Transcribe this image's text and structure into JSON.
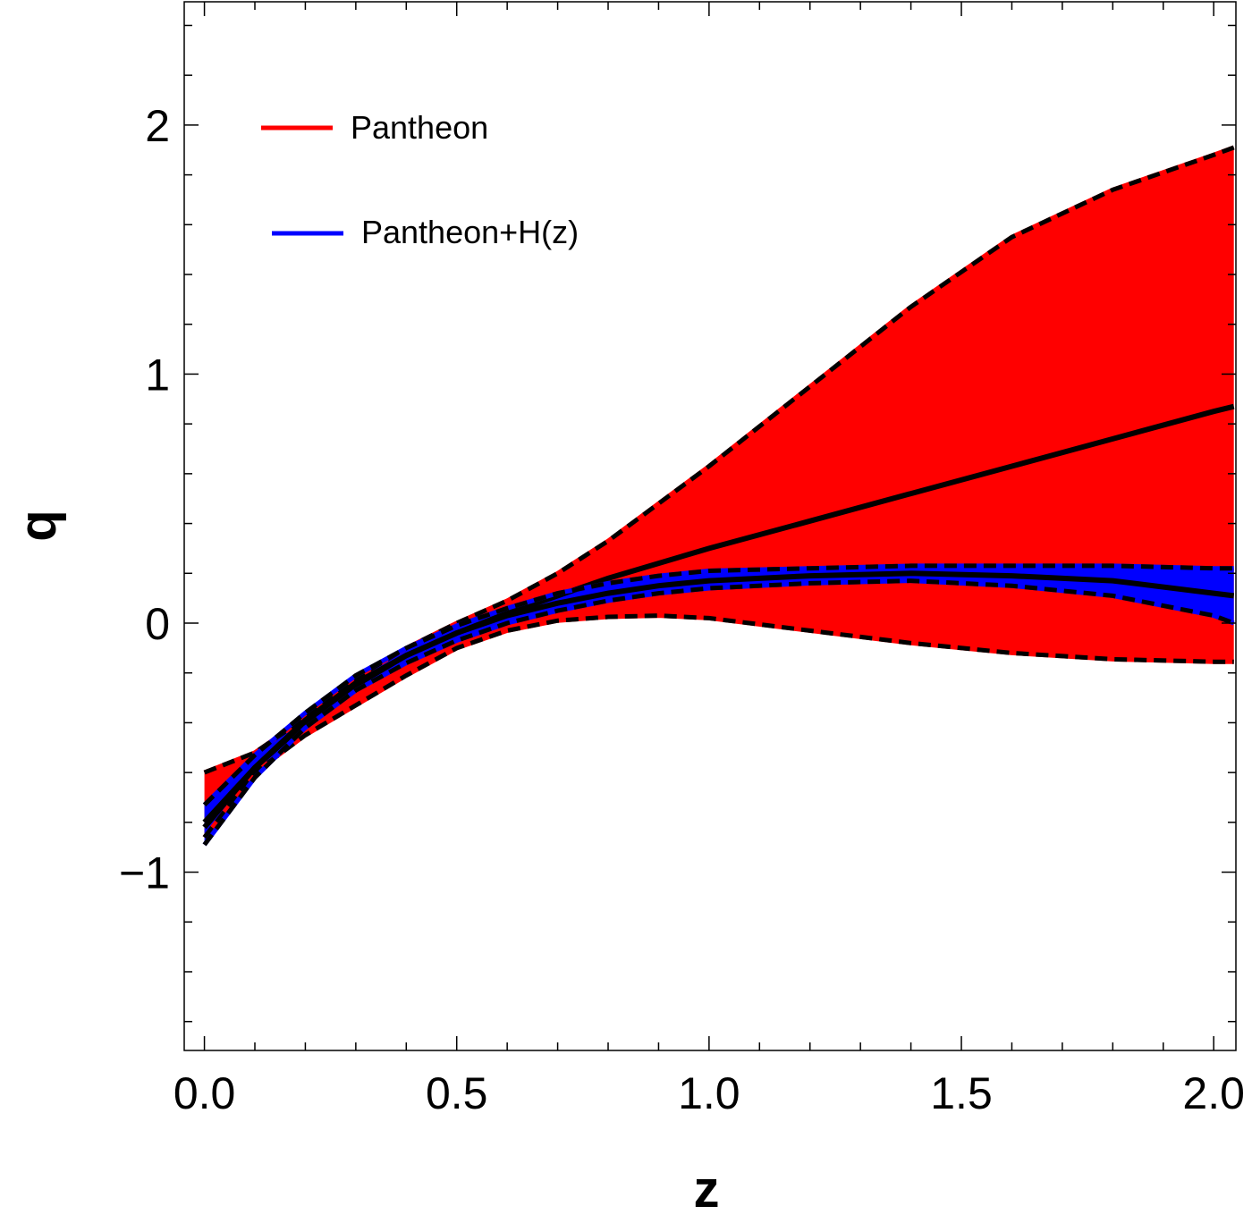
{
  "chart_data": {
    "type": "area",
    "xlabel": "z",
    "ylabel": "q",
    "xlim": [
      -0.04,
      2.044
    ],
    "ylim": [
      -1.716,
      2.495
    ],
    "x_ticks": [
      "0.0",
      "0.5",
      "1.0",
      "1.5",
      "2.0"
    ],
    "x_tick_values": [
      0,
      0.5,
      1.0,
      1.5,
      2.0
    ],
    "y_ticks": [
      "−1",
      "0",
      "1",
      "2"
    ],
    "y_tick_values": [
      -1,
      0,
      1,
      2
    ],
    "grid": false,
    "legend_placement": "top-left",
    "x": [
      0,
      0.1,
      0.2,
      0.3,
      0.4,
      0.5,
      0.6,
      0.7,
      0.8,
      0.9,
      1.0,
      1.2,
      1.4,
      1.6,
      1.8,
      2.0,
      2.04
    ],
    "series": [
      {
        "name": "Pantheon",
        "color": "#ff0000",
        "center": [
          -0.8,
          -0.58,
          -0.4,
          -0.25,
          -0.13,
          -0.04,
          0.04,
          0.11,
          0.18,
          0.24,
          0.3,
          0.41,
          0.52,
          0.63,
          0.74,
          0.85,
          0.87
        ],
        "upper": [
          -0.6,
          -0.52,
          -0.38,
          -0.22,
          -0.1,
          0.0,
          0.09,
          0.2,
          0.33,
          0.48,
          0.63,
          0.95,
          1.27,
          1.55,
          1.74,
          1.88,
          1.91
        ],
        "lower": [
          -0.86,
          -0.6,
          -0.45,
          -0.33,
          -0.21,
          -0.1,
          -0.03,
          0.01,
          0.025,
          0.03,
          0.02,
          -0.03,
          -0.08,
          -0.12,
          -0.145,
          -0.155,
          -0.155
        ]
      },
      {
        "name": "Pantheon+H(z)",
        "color": "#0000ff",
        "center": [
          -0.82,
          -0.58,
          -0.39,
          -0.24,
          -0.13,
          -0.04,
          0.03,
          0.08,
          0.12,
          0.15,
          0.17,
          0.19,
          0.2,
          0.19,
          0.17,
          0.12,
          0.11
        ],
        "upper": [
          -0.73,
          -0.53,
          -0.36,
          -0.21,
          -0.1,
          -0.01,
          0.06,
          0.12,
          0.16,
          0.19,
          0.21,
          0.22,
          0.23,
          0.23,
          0.23,
          0.22,
          0.22
        ],
        "lower": [
          -0.89,
          -0.62,
          -0.42,
          -0.27,
          -0.16,
          -0.07,
          0.0,
          0.05,
          0.09,
          0.12,
          0.14,
          0.16,
          0.17,
          0.15,
          0.11,
          0.03,
          0.0
        ]
      }
    ]
  }
}
